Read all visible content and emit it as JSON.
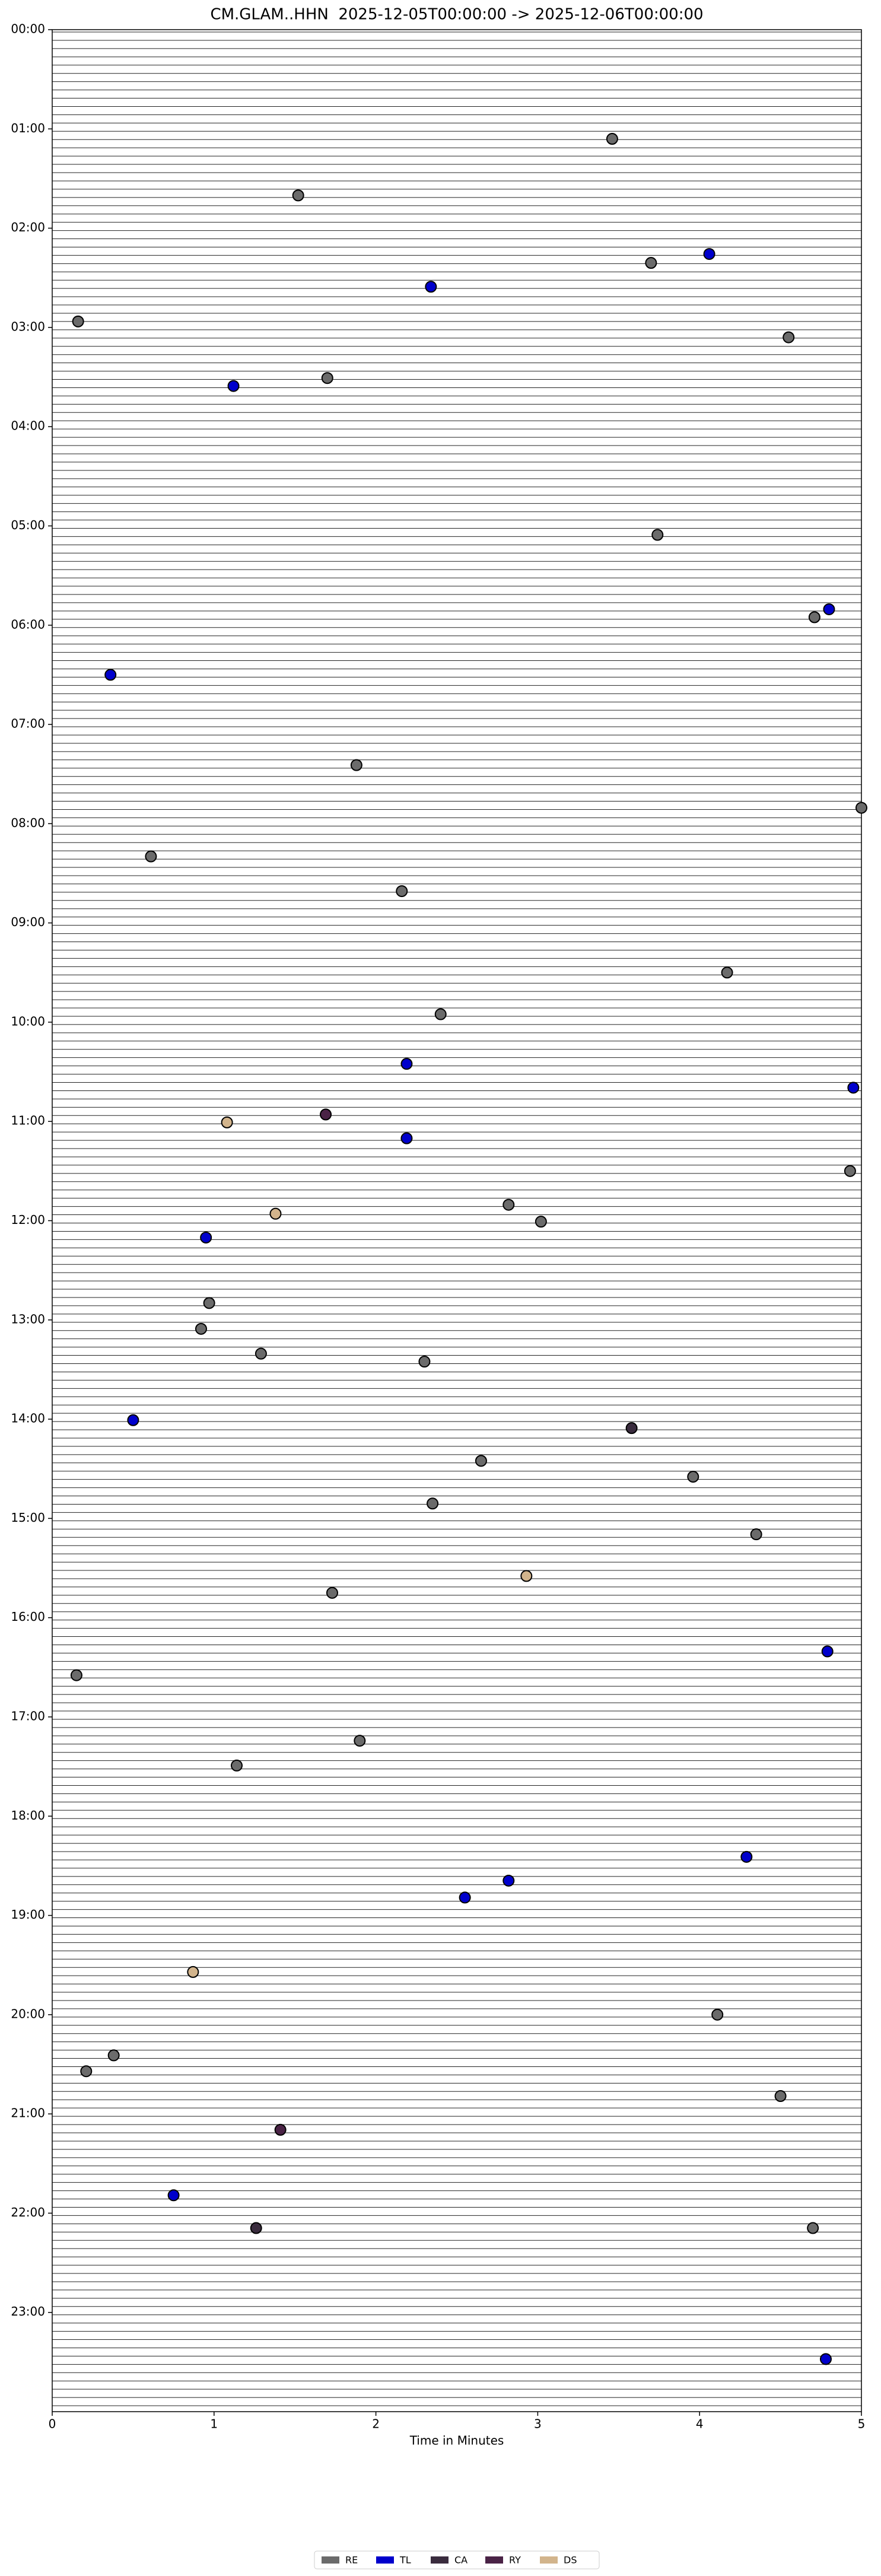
{
  "chart_data": {
    "type": "scatter",
    "title": "CM.GLAM..HHN  2025-12-05T00:00:00 -> 2025-12-06T00:00:00",
    "xlabel": "Time in Minutes",
    "xlim": [
      0,
      5
    ],
    "xticks": [
      0,
      1,
      2,
      3,
      4,
      5
    ],
    "ylim": [
      0,
      24
    ],
    "yticks": [
      {
        "value": 0,
        "label": "00:00"
      },
      {
        "value": 1,
        "label": "01:00"
      },
      {
        "value": 2,
        "label": "02:00"
      },
      {
        "value": 3,
        "label": "03:00"
      },
      {
        "value": 4,
        "label": "04:00"
      },
      {
        "value": 5,
        "label": "05:00"
      },
      {
        "value": 6,
        "label": "06:00"
      },
      {
        "value": 7,
        "label": "07:00"
      },
      {
        "value": 8,
        "label": "08:00"
      },
      {
        "value": 9,
        "label": "09:00"
      },
      {
        "value": 10,
        "label": "10:00"
      },
      {
        "value": 11,
        "label": "11:00"
      },
      {
        "value": 12,
        "label": "12:00"
      },
      {
        "value": 13,
        "label": "13:00"
      },
      {
        "value": 14,
        "label": "14:00"
      },
      {
        "value": 15,
        "label": "15:00"
      },
      {
        "value": 16,
        "label": "16:00"
      },
      {
        "value": 17,
        "label": "17:00"
      },
      {
        "value": 18,
        "label": "18:00"
      },
      {
        "value": 19,
        "label": "19:00"
      },
      {
        "value": 20,
        "label": "20:00"
      },
      {
        "value": 21,
        "label": "21:00"
      },
      {
        "value": 22,
        "label": "22:00"
      },
      {
        "value": 23,
        "label": "23:00"
      }
    ],
    "y_inverted": true,
    "legend": "bottom",
    "series": [
      {
        "name": "RE",
        "color": "#6b6b6b",
        "x": [
          3.46,
          1.52,
          3.7,
          0.16,
          4.55,
          1.7,
          3.74,
          4.71,
          1.88,
          5.0,
          0.61,
          2.16,
          4.17,
          2.4,
          4.93,
          2.82,
          3.02,
          0.97,
          0.92,
          1.29,
          2.3,
          2.65,
          3.96,
          2.35,
          4.35,
          1.73,
          0.15,
          1.9,
          1.14,
          4.11,
          0.38,
          0.21,
          4.5,
          4.7
        ],
        "values": [
          1.1,
          1.67,
          2.35,
          2.94,
          3.1,
          3.51,
          5.09,
          5.92,
          7.41,
          7.84,
          8.33,
          8.68,
          9.5,
          9.92,
          11.5,
          11.84,
          12.01,
          12.83,
          13.09,
          13.34,
          13.42,
          14.42,
          14.58,
          14.85,
          15.16,
          15.75,
          16.58,
          17.24,
          17.49,
          20.0,
          20.41,
          20.57,
          20.82,
          22.15
        ]
      },
      {
        "name": "TL",
        "color": "#0000cc",
        "x": [
          4.06,
          2.34,
          1.12,
          4.8,
          0.36,
          2.19,
          4.95,
          2.19,
          0.95,
          0.5,
          4.79,
          4.29,
          2.82,
          2.55,
          0.75,
          4.78
        ],
        "values": [
          2.26,
          2.59,
          3.59,
          5.84,
          6.5,
          10.42,
          10.66,
          11.17,
          12.17,
          14.01,
          16.34,
          18.41,
          18.65,
          18.82,
          21.82,
          23.47
        ]
      },
      {
        "name": "CA",
        "color": "#3a2c3e",
        "x": [
          3.58,
          1.26
        ],
        "values": [
          14.09,
          22.15
        ]
      },
      {
        "name": "RY",
        "color": "#4a2346",
        "x": [
          1.69,
          1.41
        ],
        "values": [
          10.93,
          21.16
        ]
      },
      {
        "name": "DS",
        "color": "#d2b48c",
        "x": [
          1.08,
          1.38,
          2.93,
          0.87
        ],
        "values": [
          11.01,
          11.93,
          15.58,
          19.57
        ]
      }
    ]
  }
}
